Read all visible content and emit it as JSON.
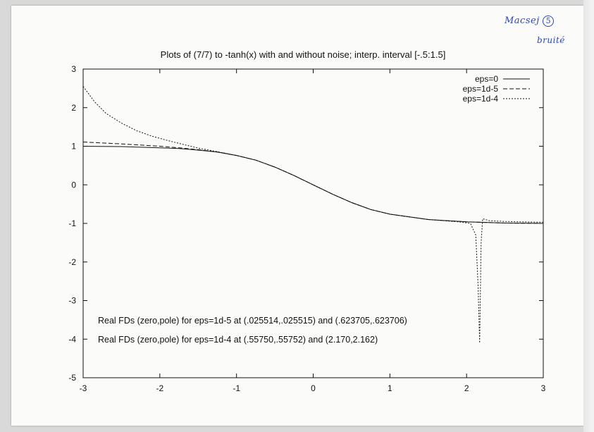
{
  "annotation": {
    "name": "Macsej",
    "number": "5",
    "note": "bruité"
  },
  "chart_data": {
    "type": "line",
    "title": "Plots of (7/7) to -tanh(x) with and without noise; interp. interval [-.5:1.5]",
    "xlabel": "",
    "ylabel": "",
    "xlim": [
      -3,
      3
    ],
    "ylim": [
      -5,
      3
    ],
    "xticks": [
      "-3",
      "-2",
      "-1",
      "0",
      "1",
      "2",
      "3"
    ],
    "yticks": [
      "3",
      "2",
      "1",
      "0",
      "-1",
      "-2",
      "-3",
      "-4",
      "-5"
    ],
    "grid": false,
    "legend_position": "top-right",
    "series": [
      {
        "name": "eps=0",
        "style": "solid",
        "x": [
          -3,
          -2.5,
          -2,
          -1.75,
          -1.5,
          -1.25,
          -1,
          -0.75,
          -0.5,
          -0.25,
          0,
          0.25,
          0.5,
          0.75,
          1,
          1.5,
          2,
          2.5,
          3
        ],
        "y": [
          1.0,
          0.99,
          0.96,
          0.94,
          0.9,
          0.85,
          0.76,
          0.64,
          0.46,
          0.24,
          0.0,
          -0.24,
          -0.46,
          -0.64,
          -0.76,
          -0.9,
          -0.96,
          -0.99,
          -1.0
        ]
      },
      {
        "name": "eps=1d-5",
        "style": "dashed",
        "x": [
          -3,
          -2.5,
          -2,
          -1.75,
          -1.5,
          -1.25,
          -1,
          -0.75,
          -0.5,
          -0.25,
          0,
          0.25,
          0.5,
          0.75,
          1,
          1.5,
          2,
          2.5,
          3
        ],
        "y": [
          1.11,
          1.06,
          1.0,
          0.96,
          0.91,
          0.85,
          0.76,
          0.64,
          0.46,
          0.24,
          0.0,
          -0.24,
          -0.46,
          -0.64,
          -0.76,
          -0.9,
          -0.96,
          -0.99,
          -1.0
        ]
      },
      {
        "name": "eps=1d-4",
        "style": "dotted",
        "x": [
          -3,
          -2.85,
          -2.7,
          -2.5,
          -2.3,
          -2.1,
          -1.9,
          -1.7,
          -1.5,
          -1.25,
          -1,
          -0.75,
          -0.5,
          -0.25,
          0,
          0.25,
          0.5,
          0.75,
          1,
          1.5,
          1.9,
          2.05,
          2.12,
          2.15,
          2.17,
          2.19,
          2.21,
          2.3,
          2.5,
          3
        ],
        "y": [
          2.55,
          2.15,
          1.85,
          1.6,
          1.4,
          1.26,
          1.15,
          1.05,
          0.95,
          0.86,
          0.76,
          0.64,
          0.46,
          0.24,
          0.0,
          -0.24,
          -0.46,
          -0.64,
          -0.76,
          -0.9,
          -0.96,
          -1.0,
          -1.3,
          -2.6,
          -4.1,
          -1.5,
          -0.88,
          -0.93,
          -0.95,
          -0.97
        ]
      }
    ],
    "annotations": [
      "Real FDs (zero,pole) for eps=1d-5 at (.025514,.025515) and (.623705,.623706)",
      "Real FDs (zero,pole) for eps=1d-4 at (.55750,.55752) and (2.170,2.162)"
    ]
  }
}
